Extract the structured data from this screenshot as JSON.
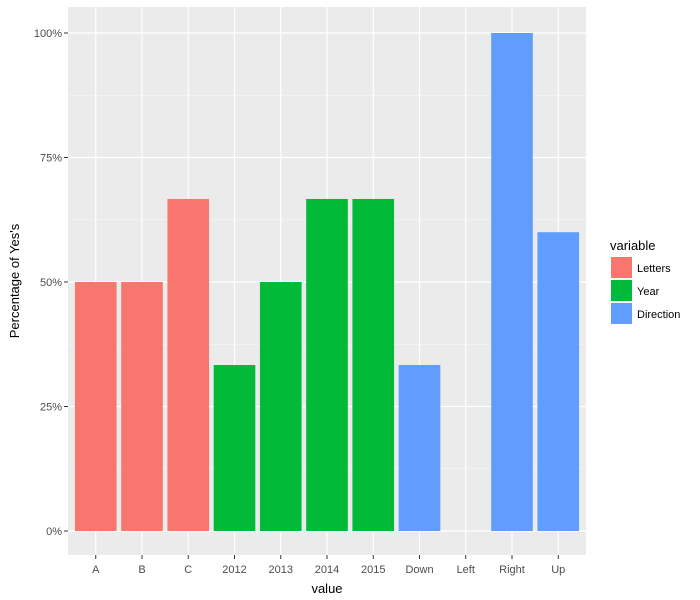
{
  "chart_data": {
    "type": "bar",
    "categories": [
      "A",
      "B",
      "C",
      "2012",
      "2013",
      "2014",
      "2015",
      "Down",
      "Left",
      "Right",
      "Up"
    ],
    "values": [
      0.5,
      0.5,
      0.6667,
      0.3333,
      0.5,
      0.6667,
      0.6667,
      0.3333,
      0.0,
      1.0,
      0.6
    ],
    "groups": [
      "Letters",
      "Letters",
      "Letters",
      "Year",
      "Year",
      "Year",
      "Year",
      "Direction",
      "Direction",
      "Direction",
      "Direction"
    ],
    "xlabel": "value",
    "ylabel": "Percentage of Yes's",
    "ylim": [
      0,
      1
    ],
    "yticks": [
      0,
      0.25,
      0.5,
      0.75,
      1.0
    ],
    "ytick_labels": [
      "0%",
      "25%",
      "50%",
      "75%",
      "100%"
    ],
    "grid": true,
    "legend": {
      "title": "variable",
      "position": "right",
      "entries": [
        {
          "name": "Letters",
          "color": "#F8766D"
        },
        {
          "name": "Year",
          "color": "#00BA38"
        },
        {
          "name": "Direction",
          "color": "#619CFF"
        }
      ]
    },
    "colors": {
      "panel_background": "#EBEBEB",
      "grid_major": "#FFFFFF"
    }
  }
}
